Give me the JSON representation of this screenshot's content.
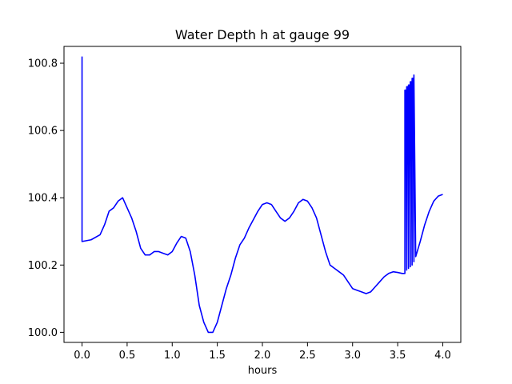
{
  "chart_data": {
    "type": "line",
    "title": "Water Depth h at gauge 99",
    "xlabel": "hours",
    "ylabel": "",
    "xlim": [
      -0.2,
      4.2
    ],
    "ylim": [
      99.97,
      100.85
    ],
    "x_ticks": [
      0.0,
      0.5,
      1.0,
      1.5,
      2.0,
      2.5,
      3.0,
      3.5,
      4.0
    ],
    "x_tick_labels": [
      "0.0",
      "0.5",
      "1.0",
      "1.5",
      "2.0",
      "2.5",
      "3.0",
      "3.5",
      "4.0"
    ],
    "y_ticks": [
      100.0,
      100.2,
      100.4,
      100.6,
      100.8
    ],
    "y_tick_labels": [
      "100.0",
      "100.2",
      "100.4",
      "100.6",
      "100.8"
    ],
    "grid": false,
    "series": [
      {
        "color": "#0000ff",
        "x": [
          0.0,
          0.0,
          0.0,
          0.1,
          0.2,
          0.25,
          0.3,
          0.35,
          0.4,
          0.45,
          0.5,
          0.55,
          0.6,
          0.65,
          0.7,
          0.75,
          0.8,
          0.85,
          0.9,
          0.95,
          1.0,
          1.05,
          1.1,
          1.15,
          1.2,
          1.25,
          1.3,
          1.35,
          1.4,
          1.45,
          1.5,
          1.55,
          1.6,
          1.65,
          1.7,
          1.75,
          1.8,
          1.85,
          1.9,
          1.95,
          2.0,
          2.05,
          2.1,
          2.15,
          2.2,
          2.25,
          2.3,
          2.35,
          2.4,
          2.45,
          2.5,
          2.55,
          2.6,
          2.65,
          2.7,
          2.75,
          2.8,
          2.85,
          2.9,
          2.95,
          3.0,
          3.05,
          3.1,
          3.15,
          3.2,
          3.25,
          3.3,
          3.35,
          3.4,
          3.45,
          3.5,
          3.55,
          3.58,
          3.58,
          3.59,
          3.6,
          3.6,
          3.61,
          3.62,
          3.62,
          3.63,
          3.64,
          3.64,
          3.65,
          3.66,
          3.66,
          3.67,
          3.68,
          3.68,
          3.7,
          3.75,
          3.8,
          3.85,
          3.9,
          3.95,
          4.0
        ],
        "y": [
          100.82,
          100.27,
          100.27,
          100.275,
          100.29,
          100.32,
          100.36,
          100.37,
          100.39,
          100.4,
          100.37,
          100.34,
          100.3,
          100.25,
          100.23,
          100.23,
          100.24,
          100.24,
          100.235,
          100.23,
          100.24,
          100.265,
          100.285,
          100.28,
          100.24,
          100.17,
          100.08,
          100.03,
          100.0,
          100.0,
          100.03,
          100.08,
          100.13,
          100.17,
          100.22,
          100.26,
          100.28,
          100.31,
          100.335,
          100.36,
          100.38,
          100.385,
          100.38,
          100.36,
          100.34,
          100.33,
          100.34,
          100.36,
          100.385,
          100.395,
          100.39,
          100.37,
          100.34,
          100.29,
          100.24,
          100.2,
          100.19,
          100.18,
          100.17,
          100.15,
          100.13,
          100.125,
          100.12,
          100.115,
          100.12,
          100.135,
          100.15,
          100.165,
          100.175,
          100.18,
          100.178,
          100.175,
          100.175,
          100.72,
          100.72,
          100.185,
          100.73,
          100.73,
          100.19,
          100.735,
          100.735,
          100.195,
          100.745,
          100.745,
          100.2,
          100.755,
          100.755,
          100.21,
          100.765,
          100.225,
          100.27,
          100.32,
          100.36,
          100.39,
          100.405,
          100.41
        ]
      }
    ]
  }
}
